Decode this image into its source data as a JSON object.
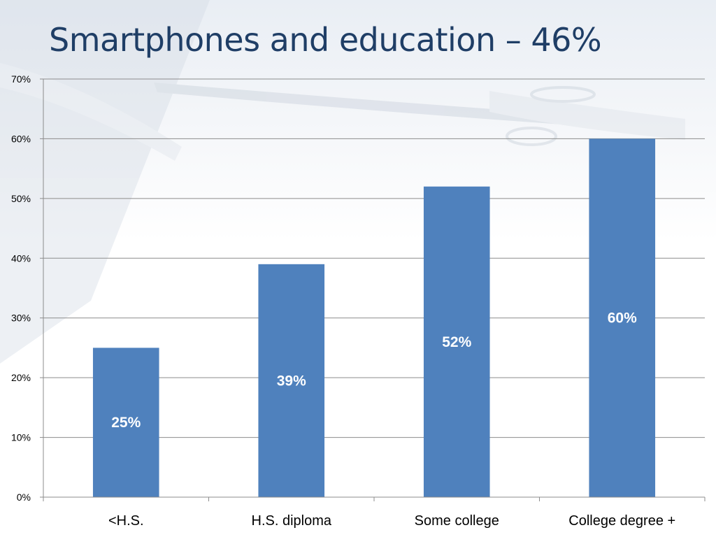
{
  "slide": {
    "title": "Smartphones and education – 46%"
  },
  "colors": {
    "bar": "#4f81bd",
    "title": "#1f3e66",
    "grid": "#8c8c8c"
  },
  "chart_data": {
    "type": "bar",
    "title": "",
    "xlabel": "",
    "ylabel": "",
    "categories": [
      "<H.S.",
      "H.S. diploma",
      "Some college",
      "College degree +"
    ],
    "values": [
      25,
      39,
      52,
      60
    ],
    "data_labels": [
      "25%",
      "39%",
      "52%",
      "60%"
    ],
    "ylim": [
      0,
      70
    ],
    "yticks": [
      0,
      10,
      20,
      30,
      40,
      50,
      60,
      70
    ],
    "ytick_labels": [
      "0%",
      "10%",
      "20%",
      "30%",
      "40%",
      "50%",
      "60%",
      "70%"
    ],
    "grid": true,
    "legend": "none"
  }
}
